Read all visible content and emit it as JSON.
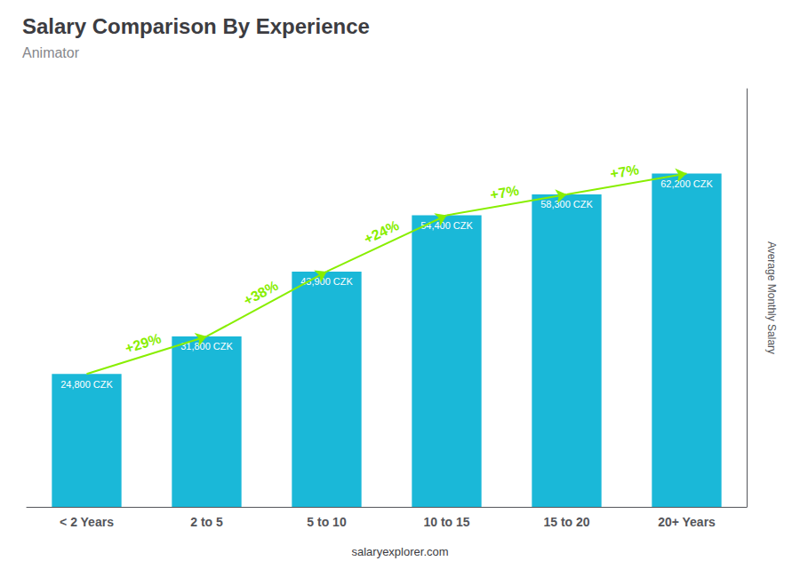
{
  "chart_data": {
    "type": "bar",
    "title": "Salary Comparison By Experience",
    "subtitle": "Animator",
    "ylabel": "Average Monthly Salary",
    "source": "salaryexplorer.com",
    "categories": [
      "< 2 Years",
      "2 to 5",
      "5 to 10",
      "10 to 15",
      "15 to 20",
      "20+ Years"
    ],
    "values": [
      24800,
      31800,
      43900,
      54400,
      58300,
      62200
    ],
    "value_labels": [
      "24,800 CZK",
      "31,800 CZK",
      "43,900 CZK",
      "54,400 CZK",
      "58,300 CZK",
      "62,200 CZK"
    ],
    "data_labels": true,
    "color": "#1ab8d8",
    "ylim": [
      0,
      78000
    ],
    "tick_labels": "x",
    "grid": false,
    "annotations": [
      {
        "from": "< 2 Years",
        "to": "2 to 5",
        "text": "+29%",
        "color": "#88ee00"
      },
      {
        "from": "2 to 5",
        "to": "5 to 10",
        "text": "+38%",
        "color": "#88ee00"
      },
      {
        "from": "5 to 10",
        "to": "10 to 15",
        "text": "+24%",
        "color": "#88ee00"
      },
      {
        "from": "10 to 15",
        "to": "15 to 20",
        "text": "+7%",
        "color": "#88ee00"
      },
      {
        "from": "15 to 20",
        "to": "20+ Years",
        "text": "+7%",
        "color": "#88ee00"
      }
    ]
  }
}
